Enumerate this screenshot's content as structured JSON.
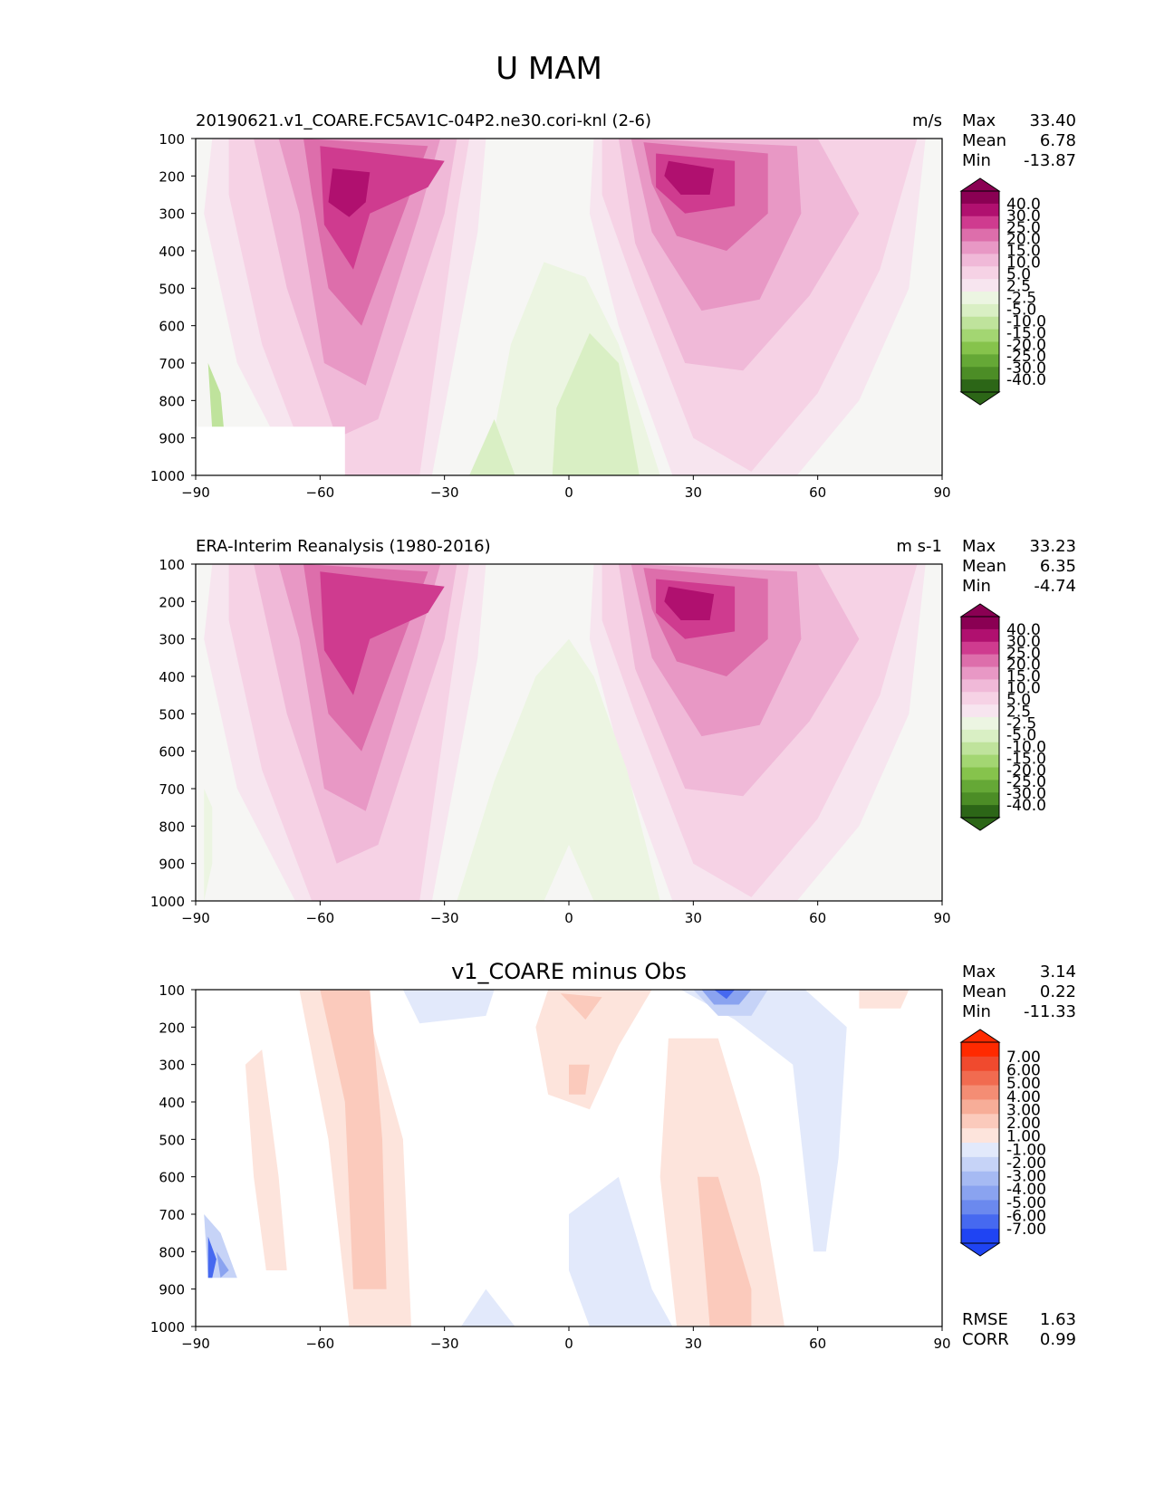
{
  "figure_title": "U MAM",
  "stats_labels": {
    "max": "Max",
    "mean": "Mean",
    "min": "Min",
    "rmse": "RMSE",
    "corr": "CORR"
  },
  "colors": {
    "abs_levels_pos": [
      "#f7e5ef",
      "#f6d2e5",
      "#f0b9d8",
      "#e898c5",
      "#dd6eab",
      "#cf3b8f",
      "#b0106f",
      "#8a0053"
    ],
    "abs_levels_neg": [
      "#ecf5e2",
      "#d9efc4",
      "#bfe39c",
      "#a3d672",
      "#86c34c",
      "#65a836",
      "#4c8d26",
      "#2c6617"
    ],
    "abs_neutral": "#f6f6f4",
    "diff_levels_pos": [
      "#fde4dc",
      "#fbcabc",
      "#f7ad98",
      "#f48d74",
      "#f16b50",
      "#f04a2e",
      "#ff2a00"
    ],
    "diff_levels_neg": [
      "#e2e9fb",
      "#c6d3f7",
      "#a6baf3",
      "#8aa3f0",
      "#6b89ee",
      "#4669f0",
      "#1f44f3"
    ]
  },
  "chart_data": [
    {
      "type": "heatmap",
      "title": "20190621.v1_COARE.FC5AV1C-04P2.ne30.cori-knl (2-6)",
      "units": "m/s",
      "stats": {
        "max": "33.40",
        "mean": "6.78",
        "min": "-13.87"
      },
      "xlim": [
        -90,
        90
      ],
      "ylim": [
        1000,
        100
      ],
      "xticks": [
        -90,
        -60,
        -30,
        0,
        30,
        60,
        90
      ],
      "xtick_labels": [
        "−90",
        "−60",
        "−30",
        "0",
        "30",
        "60",
        "90"
      ],
      "yticks": [
        100,
        200,
        300,
        400,
        500,
        600,
        700,
        800,
        900,
        1000
      ],
      "colorbar_labels": [
        "40.0",
        "30.0",
        "25.0",
        "20.0",
        "15.0",
        "10.0",
        "5.0",
        "2.5",
        "-2.5",
        "-5.0",
        "-10.0",
        "-15.0",
        "-20.0",
        "-25.0",
        "-30.0",
        "-40.0"
      ],
      "features": [
        {
          "lat": -52,
          "p": 230,
          "value": 33.4
        },
        {
          "lat": 28,
          "p": 190,
          "value": 31.0
        },
        {
          "lat": 5,
          "p": 750,
          "value": -6.0
        },
        {
          "lat": -85,
          "p": 800,
          "value": -13.87
        }
      ]
    },
    {
      "type": "heatmap",
      "title": "ERA-Interim Reanalysis (1980-2016)",
      "units": "m s-1",
      "stats": {
        "max": "33.23",
        "mean": "6.35",
        "min": "-4.74"
      },
      "xlim": [
        -90,
        90
      ],
      "ylim": [
        1000,
        100
      ],
      "xticks": [
        -90,
        -60,
        -30,
        0,
        30,
        60,
        90
      ],
      "xtick_labels": [
        "−90",
        "−60",
        "−30",
        "0",
        "30",
        "60",
        "90"
      ],
      "yticks": [
        100,
        200,
        300,
        400,
        500,
        600,
        700,
        800,
        900,
        1000
      ],
      "colorbar_labels": [
        "40.0",
        "30.0",
        "25.0",
        "20.0",
        "15.0",
        "10.0",
        "5.0",
        "2.5",
        "-2.5",
        "-5.0",
        "-10.0",
        "-15.0",
        "-20.0",
        "-25.0",
        "-30.0",
        "-40.0"
      ],
      "features": [
        {
          "lat": -50,
          "p": 230,
          "value": 29.0
        },
        {
          "lat": 30,
          "p": 190,
          "value": 33.23
        },
        {
          "lat": 0,
          "p": 600,
          "value": -4.74
        }
      ]
    },
    {
      "type": "heatmap",
      "title": "v1_COARE minus Obs",
      "units": "",
      "stats": {
        "max": "3.14",
        "mean": "0.22",
        "min": "-11.33",
        "rmse": "1.63",
        "corr": "0.99"
      },
      "xlim": [
        -90,
        90
      ],
      "ylim": [
        1000,
        100
      ],
      "xticks": [
        -90,
        -60,
        -30,
        0,
        30,
        60,
        90
      ],
      "xtick_labels": [
        "−90",
        "−60",
        "−30",
        "0",
        "30",
        "60",
        "90"
      ],
      "yticks": [
        100,
        200,
        300,
        400,
        500,
        600,
        700,
        800,
        900,
        1000
      ],
      "colorbar_labels": [
        "7.00",
        "6.00",
        "5.00",
        "4.00",
        "3.00",
        "2.00",
        "1.00",
        "-1.00",
        "-2.00",
        "-3.00",
        "-4.00",
        "-5.00",
        "-6.00",
        "-7.00"
      ],
      "features": [
        {
          "lat": 37,
          "p": 100,
          "value": -6.5
        },
        {
          "lat": -85,
          "p": 820,
          "value": -11.33
        },
        {
          "lat": -50,
          "p": 500,
          "value": 2.5
        },
        {
          "lat": 35,
          "p": 750,
          "value": 2.5
        },
        {
          "lat": 5,
          "p": 100,
          "value": 2.5
        }
      ]
    }
  ]
}
